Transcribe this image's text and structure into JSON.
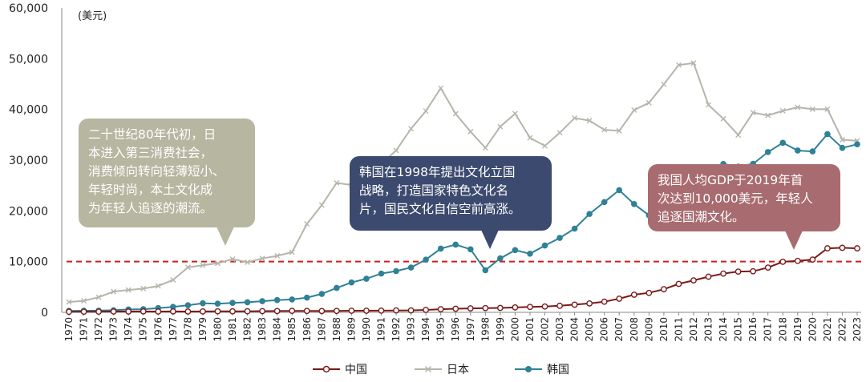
{
  "chart_data": {
    "type": "line",
    "unit_label": "(美元)",
    "xlabel": "",
    "ylabel": "",
    "ylim": [
      0,
      60000
    ],
    "yticks": [
      0,
      10000,
      20000,
      30000,
      40000,
      50000,
      60000
    ],
    "ytick_labels": [
      "0",
      "10,000",
      "20,000",
      "30,000",
      "40,000",
      "50,000",
      "60,000"
    ],
    "x": [
      1970,
      1971,
      1972,
      1973,
      1974,
      1975,
      1976,
      1977,
      1978,
      1979,
      1980,
      1981,
      1982,
      1983,
      1984,
      1985,
      1986,
      1987,
      1988,
      1989,
      1990,
      1991,
      1992,
      1993,
      1994,
      1995,
      1996,
      1997,
      1998,
      1999,
      2000,
      2001,
      2002,
      2003,
      2004,
      2005,
      2006,
      2007,
      2008,
      2009,
      2010,
      2011,
      2012,
      2013,
      2014,
      2015,
      2016,
      2017,
      2018,
      2019,
      2020,
      2021,
      2022,
      2023
    ],
    "reference_line": {
      "value": 10000,
      "color": "#cc1f1f",
      "style": "dashed"
    },
    "legend_position": "bottom",
    "series": [
      {
        "name": "中国",
        "color": "#7a1a1a",
        "marker": "circle-open",
        "values": [
          110,
          120,
          130,
          155,
          160,
          180,
          160,
          180,
          160,
          180,
          200,
          200,
          210,
          230,
          250,
          290,
          280,
          250,
          280,
          310,
          320,
          330,
          370,
          380,
          470,
          610,
          710,
          780,
          830,
          870,
          960,
          1060,
          1150,
          1290,
          1510,
          1750,
          2100,
          2690,
          3470,
          3830,
          4550,
          5610,
          6300,
          7020,
          7640,
          8030,
          8090,
          8820,
          9970,
          10140,
          10400,
          12620,
          12720,
          12620
        ]
      },
      {
        "name": "日本",
        "color": "#b5b5ab",
        "marker": "x",
        "values": [
          2040,
          2270,
          2980,
          4090,
          4400,
          4670,
          5200,
          6400,
          8880,
          9280,
          9660,
          10500,
          9870,
          10620,
          11130,
          11860,
          17430,
          21140,
          25500,
          25100,
          25400,
          29300,
          31900,
          36200,
          39700,
          44200,
          39150,
          35640,
          32420,
          36610,
          39170,
          34410,
          32830,
          35400,
          38300,
          37800,
          35990,
          35780,
          39880,
          41310,
          44970,
          48760,
          49150,
          40900,
          38160,
          34960,
          39380,
          38830,
          39730,
          40420,
          40040,
          40060,
          34020,
          33830
        ]
      },
      {
        "name": "韩国",
        "color": "#2f8196",
        "marker": "circle-filled",
        "values": [
          280,
          320,
          330,
          410,
          570,
          620,
          840,
          1070,
          1400,
          1780,
          1710,
          1870,
          1990,
          2200,
          2420,
          2540,
          2900,
          3630,
          4810,
          5890,
          6620,
          7640,
          8130,
          8840,
          10400,
          12570,
          13350,
          12430,
          8300,
          10650,
          12260,
          11560,
          13170,
          14670,
          16500,
          19400,
          21740,
          24090,
          21350,
          19140,
          23080,
          25100,
          25460,
          27180,
          29250,
          28730,
          29280,
          31600,
          33430,
          31900,
          31720,
          35140,
          32420,
          33120
        ]
      }
    ]
  },
  "annotations": [
    {
      "lines": [
        "二十世纪80年代初，日",
        "本进入第三消费社会，",
        "消费倾向转向轻薄短小、",
        "年轻时尚，本土文化成",
        "为年轻人追逐的潮流。"
      ],
      "color": "#b6b6a1"
    },
    {
      "lines": [
        "韩国在1998年提出文化立国",
        "战略，打造国家特色文化名",
        "片，国民文化自信空前高涨。"
      ],
      "color": "#3b4a6e"
    },
    {
      "lines": [
        "我国人均GDP于2019年首",
        "次达到10,000美元，年轻人",
        "追逐国潮文化。"
      ],
      "color": "#a86c70"
    }
  ]
}
